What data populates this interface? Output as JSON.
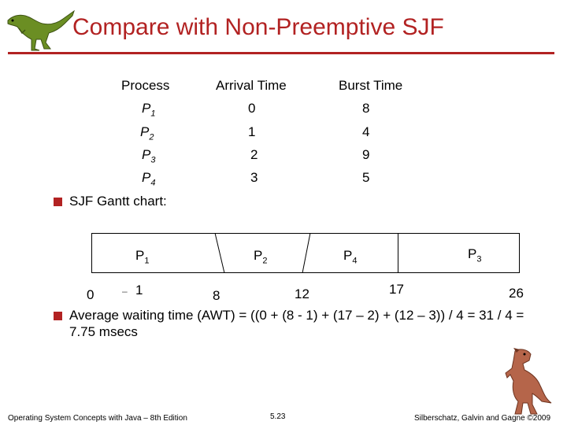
{
  "title": "Compare with Non-Preemptive SJF",
  "table": {
    "headers": [
      "Process",
      "Arrival Time",
      "Burst Time"
    ],
    "rows": [
      {
        "process": "P",
        "sub": "1",
        "arrival": "0",
        "burst": "8"
      },
      {
        "process": "P",
        "sub": "2",
        "arrival": "1",
        "burst": "4"
      },
      {
        "process": "P",
        "sub": "3",
        "arrival": "2",
        "burst": "9"
      },
      {
        "process": "P",
        "sub": "4",
        "arrival": "3",
        "burst": "5"
      }
    ]
  },
  "gantt_heading": "SJF Gantt chart:",
  "gantt": {
    "segments": [
      {
        "label": "P",
        "sub": "1"
      },
      {
        "label": "P",
        "sub": "2"
      },
      {
        "label": "P",
        "sub": "4"
      },
      {
        "label": "P",
        "sub": "3"
      }
    ],
    "ticks": [
      "0",
      "1",
      "8",
      "12",
      "17",
      "26"
    ],
    "dash": "–"
  },
  "awt_text": "Average waiting time (AWT) = ((0 + (8 - 1) + (17 – 2) + (12 – 3)) / 4 = 31 / 4 = 7.75 msecs",
  "footer": {
    "left": "Operating System Concepts with Java – 8th Edition",
    "center": "5.23",
    "right": "Silberschatz, Galvin and Gagne ©2009"
  },
  "colors": {
    "accent": "#b22222"
  },
  "icons": [
    "dinosaur-logo-icon",
    "dinosaur-mascot-icon"
  ]
}
